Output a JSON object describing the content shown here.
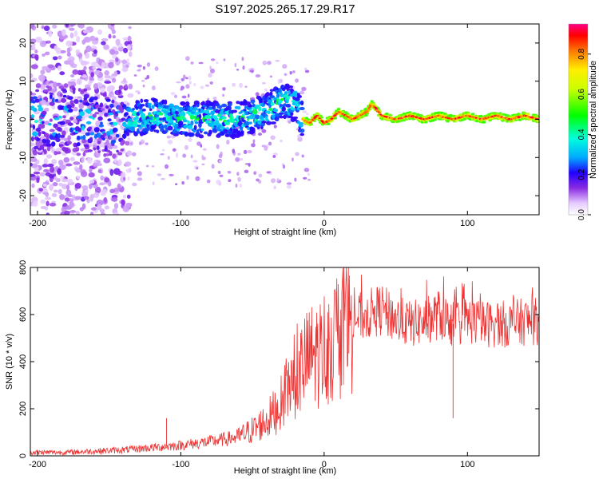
{
  "figure_title": "S197.2025.265.17.29.R17",
  "chart_data": [
    {
      "type": "heatmap",
      "name": "spectrogram",
      "xlabel": "Height of straight line (km)",
      "ylabel": "Frequency (Hz)",
      "xlim": [
        -205,
        150
      ],
      "ylim": [
        -25,
        25
      ],
      "xticks": [
        -200,
        -100,
        0,
        100
      ],
      "xtick_labels": [
        "-200",
        "-100",
        "0",
        "100"
      ],
      "yticks": [
        -20,
        -10,
        0,
        10,
        20
      ],
      "ytick_labels": [
        "-20",
        "-10",
        "0",
        "10",
        "20"
      ],
      "colorbar": {
        "label": "Normalized spectral amplitude",
        "range": [
          0.0,
          0.95
        ],
        "ticks": [
          0.0,
          0.2,
          0.4,
          0.6,
          0.8
        ],
        "tick_labels": [
          "0.0",
          "0.2",
          "0.4",
          "0.6",
          "0.8"
        ],
        "colormap": "rainbow"
      },
      "ridge": {
        "description": "dominant frequency trace",
        "x": [
          -205,
          -180,
          -150,
          -120,
          -100,
          -80,
          -60,
          -40,
          -30,
          -20,
          -15,
          -10,
          -5,
          0,
          5,
          10,
          15,
          20,
          25,
          30,
          33,
          36,
          40,
          50,
          60,
          70,
          80,
          90,
          100,
          110,
          120,
          130,
          140,
          150
        ],
        "y": [
          0,
          0,
          -1,
          1,
          0,
          0,
          0,
          2,
          5,
          4,
          0,
          -1,
          1,
          -1,
          0,
          2,
          1,
          0,
          1,
          2,
          4,
          3,
          1,
          0,
          1,
          0,
          1,
          0,
          1,
          0,
          1,
          0,
          1,
          0
        ]
      }
    },
    {
      "type": "line",
      "name": "snr",
      "color": "#ee3333",
      "xlabel": "Height of straight line (km)",
      "ylabel": "SNR (10 * v/v)",
      "xlim": [
        -205,
        150
      ],
      "ylim": [
        0,
        800
      ],
      "xticks": [
        -200,
        -100,
        0,
        100
      ],
      "xtick_labels": [
        "-200",
        "-100",
        "0",
        "100"
      ],
      "yticks": [
        0,
        200,
        400,
        600,
        800
      ],
      "ytick_labels": [
        "0",
        "200",
        "400",
        "600",
        "800"
      ],
      "series": [
        {
          "name": "SNR",
          "x": [
            -205,
            -180,
            -160,
            -140,
            -120,
            -100,
            -80,
            -60,
            -50,
            -40,
            -30,
            -25,
            -20,
            -15,
            -10,
            -5,
            0,
            5,
            10,
            15,
            20,
            30,
            40,
            50,
            60,
            70,
            80,
            90,
            100,
            110,
            120,
            130,
            140,
            150
          ],
          "y": [
            15,
            15,
            20,
            25,
            35,
            45,
            60,
            80,
            110,
            150,
            220,
            300,
            330,
            380,
            420,
            430,
            460,
            480,
            520,
            560,
            580,
            600,
            620,
            580,
            560,
            570,
            600,
            560,
            580,
            560,
            560,
            560,
            570,
            570
          ]
        }
      ],
      "annotations": [
        {
          "x": -110,
          "y": 160,
          "note": "isolated spike"
        },
        {
          "x": 90,
          "y": 160,
          "note": "downward spike"
        }
      ]
    }
  ]
}
